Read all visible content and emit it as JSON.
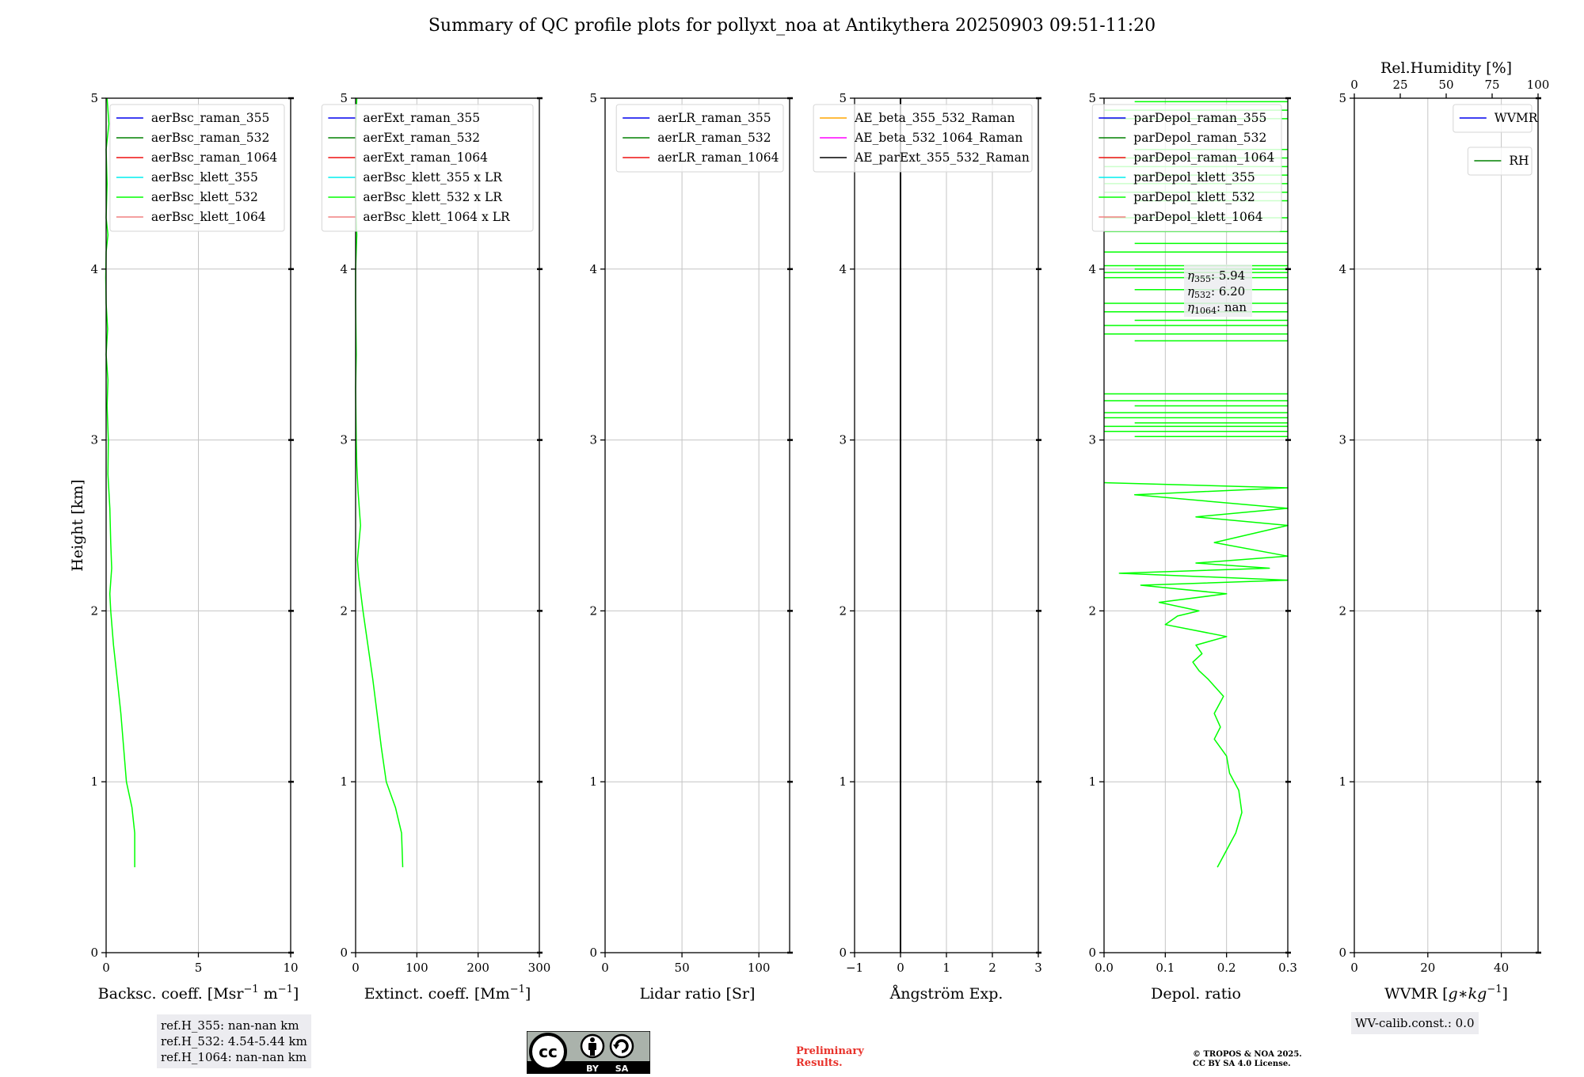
{
  "figure_title": "Summary of QC profile plots for pollyxt_noa at Antikythera 20250903 09:51-11:20",
  "ref_heights": [
    "ref.H_355: nan-nan km",
    "ref.H_532: 4.54-5.44 km",
    "ref.H_1064: nan-nan km"
  ],
  "wv_calib": "WV-calib.const.: 0.0",
  "preliminary": [
    "Preliminary",
    "Results."
  ],
  "copyright": [
    "© TROPOS & NOA 2025.",
    "CC BY SA 4.0 License."
  ],
  "license_badge": {
    "cc": "cc",
    "by": "BY",
    "sa": "SA"
  },
  "colors": {
    "blue": "#0000ee",
    "green": "#008000",
    "red": "#ee1111",
    "cyan": "#00eeee",
    "lime": "#00ff00",
    "pink": "#f08080",
    "orange": "#ffa500",
    "magenta": "#ff00ff",
    "black": "#000000"
  },
  "chart_data": [
    {
      "type": "line",
      "xlabel": "Backsc. coeff. [Msr$^{-1}$ m$^{-1}$]",
      "xlabel_parts": [
        "Backsc. coeff. [Msr",
        "−1",
        " m",
        "−1",
        "]"
      ],
      "ylabel": "Height [km]",
      "xlim": [
        0,
        10
      ],
      "ylim": [
        0,
        5
      ],
      "xticks": [
        0,
        5,
        10
      ],
      "xtick_labels": [
        "0",
        "5",
        "10"
      ],
      "yticks": [
        0,
        1,
        2,
        3,
        4,
        5
      ],
      "ytick_labels": [
        "0",
        "1",
        "2",
        "3",
        "4",
        "5"
      ],
      "legend": {
        "location": "top-right",
        "entries": [
          {
            "label": "aerBsc_raman_355",
            "color": "blue"
          },
          {
            "label": "aerBsc_raman_532",
            "color": "green"
          },
          {
            "label": "aerBsc_raman_1064",
            "color": "red"
          },
          {
            "label": "aerBsc_klett_355",
            "color": "cyan"
          },
          {
            "label": "aerBsc_klett_532",
            "color": "lime"
          },
          {
            "label": "aerBsc_klett_1064",
            "color": "pink"
          }
        ]
      },
      "series": [
        {
          "name": "aerBsc_klett_532",
          "color": "lime",
          "points": [
            [
              1.55,
              0.5
            ],
            [
              1.55,
              0.7
            ],
            [
              1.4,
              0.85
            ],
            [
              1.1,
              1.0
            ],
            [
              0.95,
              1.2
            ],
            [
              0.8,
              1.4
            ],
            [
              0.6,
              1.6
            ],
            [
              0.4,
              1.8
            ],
            [
              0.25,
              2.0
            ],
            [
              0.2,
              2.1
            ],
            [
              0.3,
              2.25
            ],
            [
              0.25,
              2.4
            ],
            [
              0.2,
              2.6
            ],
            [
              0.1,
              2.8
            ],
            [
              0.12,
              3.0
            ],
            [
              0.05,
              3.2
            ],
            [
              0.1,
              3.35
            ],
            [
              0.0,
              3.5
            ],
            [
              0.08,
              3.65
            ],
            [
              0.0,
              3.8
            ],
            [
              -0.02,
              3.95
            ],
            [
              0.0,
              4.1
            ],
            [
              0.1,
              4.2
            ],
            [
              0.0,
              4.3
            ],
            [
              0.05,
              4.5
            ],
            [
              0.0,
              4.7
            ],
            [
              0.15,
              4.85
            ],
            [
              0.05,
              5.0
            ]
          ]
        }
      ]
    },
    {
      "type": "line",
      "xlabel": "Extinct. coeff. [Mm$^{-1}$]",
      "xlabel_parts": [
        "Extinct. coeff. [Mm",
        "−1",
        "]"
      ],
      "xlim": [
        0,
        300
      ],
      "ylim": [
        0,
        5
      ],
      "xticks": [
        0,
        100,
        200,
        300
      ],
      "xtick_labels": [
        "0",
        "100",
        "200",
        "300"
      ],
      "yticks": [
        0,
        1,
        2,
        3,
        4,
        5
      ],
      "ytick_labels": [
        "0",
        "1",
        "2",
        "3",
        "4",
        "5"
      ],
      "legend": {
        "location": "top-right",
        "entries": [
          {
            "label": "aerExt_raman_355",
            "color": "blue"
          },
          {
            "label": "aerExt_raman_532",
            "color": "green"
          },
          {
            "label": "aerExt_raman_1064",
            "color": "red"
          },
          {
            "label": "aerBsc_klett_355 x LR",
            "color": "cyan"
          },
          {
            "label": "aerBsc_klett_532 x LR",
            "color": "lime"
          },
          {
            "label": "aerBsc_klett_1064 x LR",
            "color": "pink"
          }
        ]
      },
      "series": [
        {
          "name": "aerBsc_klett_532 x LR",
          "color": "lime",
          "points": [
            [
              77,
              0.5
            ],
            [
              75,
              0.7
            ],
            [
              65,
              0.85
            ],
            [
              50,
              1.0
            ],
            [
              42,
              1.2
            ],
            [
              35,
              1.4
            ],
            [
              28,
              1.6
            ],
            [
              20,
              1.8
            ],
            [
              12,
              2.0
            ],
            [
              5,
              2.2
            ],
            [
              3,
              2.3
            ],
            [
              8,
              2.5
            ],
            [
              4,
              2.7
            ],
            [
              2,
              2.85
            ],
            [
              1,
              3.0
            ],
            [
              0,
              3.3
            ],
            [
              1,
              3.5
            ],
            [
              0,
              3.8
            ],
            [
              0,
              4.0
            ],
            [
              2,
              4.2
            ],
            [
              0,
              4.4
            ],
            [
              0,
              4.8
            ],
            [
              2,
              5.0
            ]
          ]
        }
      ]
    },
    {
      "type": "line",
      "xlabel": "Lidar ratio [Sr]",
      "xlim": [
        0,
        120
      ],
      "ylim": [
        0,
        5
      ],
      "xticks": [
        0,
        50,
        100
      ],
      "xtick_labels": [
        "0",
        "50",
        "100"
      ],
      "yticks": [
        0,
        1,
        2,
        3,
        4,
        5
      ],
      "ytick_labels": [
        "0",
        "1",
        "2",
        "3",
        "4",
        "5"
      ],
      "legend": {
        "location": "top-right",
        "entries": [
          {
            "label": "aerLR_raman_355",
            "color": "blue"
          },
          {
            "label": "aerLR_raman_532",
            "color": "green"
          },
          {
            "label": "aerLR_raman_1064",
            "color": "red"
          }
        ]
      },
      "series": []
    },
    {
      "type": "line",
      "xlabel": "Ångström Exp.",
      "xlim": [
        -1,
        3
      ],
      "ylim": [
        0,
        5
      ],
      "xticks": [
        -1,
        0,
        1,
        2,
        3
      ],
      "xtick_labels": [
        "−1",
        "0",
        "1",
        "2",
        "3"
      ],
      "yticks": [
        0,
        1,
        2,
        3,
        4,
        5
      ],
      "ytick_labels": [
        "0",
        "1",
        "2",
        "3",
        "4",
        "5"
      ],
      "vline": 0,
      "legend": {
        "location": "top-right",
        "entries": [
          {
            "label": "AE_beta_355_532_Raman",
            "color": "orange"
          },
          {
            "label": "AE_beta_532_1064_Raman",
            "color": "magenta"
          },
          {
            "label": "AE_parExt_355_532_Raman",
            "color": "black"
          }
        ]
      },
      "series": []
    },
    {
      "type": "line",
      "xlabel": "Depol. ratio",
      "xlim": [
        0,
        0.3
      ],
      "ylim": [
        0,
        5
      ],
      "xticks": [
        0,
        0.1,
        0.2,
        0.3
      ],
      "xtick_labels": [
        "0.0",
        "0.1",
        "0.2",
        "0.3"
      ],
      "yticks": [
        0,
        1,
        2,
        3,
        4,
        5
      ],
      "ytick_labels": [
        "0",
        "1",
        "2",
        "3",
        "4",
        "5"
      ],
      "legend": {
        "location": "top-right",
        "entries": [
          {
            "label": "parDepol_raman_355",
            "color": "blue"
          },
          {
            "label": "parDepol_raman_532",
            "color": "green"
          },
          {
            "label": "parDepol_raman_1064",
            "color": "red"
          },
          {
            "label": "parDepol_klett_355",
            "color": "cyan"
          },
          {
            "label": "parDepol_klett_532",
            "color": "lime"
          },
          {
            "label": "parDepol_klett_1064",
            "color": "pink"
          }
        ]
      },
      "annotation": [
        "η355: 5.94",
        "η532: 6.20",
        "η1064: nan"
      ],
      "series": [
        {
          "name": "parDepol_klett_532",
          "color": "lime",
          "points": [
            [
              0.185,
              0.5
            ],
            [
              0.2,
              0.6
            ],
            [
              0.215,
              0.7
            ],
            [
              0.225,
              0.82
            ],
            [
              0.22,
              0.95
            ],
            [
              0.205,
              1.05
            ],
            [
              0.2,
              1.15
            ],
            [
              0.18,
              1.25
            ],
            [
              0.19,
              1.32
            ],
            [
              0.18,
              1.4
            ],
            [
              0.195,
              1.5
            ],
            [
              0.17,
              1.6
            ],
            [
              0.155,
              1.65
            ],
            [
              0.145,
              1.7
            ],
            [
              0.16,
              1.75
            ],
            [
              0.15,
              1.8
            ],
            [
              0.2,
              1.85
            ],
            [
              0.1,
              1.92
            ],
            [
              0.12,
              1.97
            ],
            [
              0.155,
              2.0
            ],
            [
              0.09,
              2.05
            ],
            [
              0.2,
              2.1
            ],
            [
              0.06,
              2.15
            ],
            [
              0.3,
              2.18
            ],
            [
              0.025,
              2.22
            ],
            [
              0.27,
              2.25
            ],
            [
              0.15,
              2.28
            ],
            [
              0.3,
              2.32
            ],
            [
              0.18,
              2.4
            ],
            [
              0.3,
              2.5
            ],
            [
              0.15,
              2.55
            ],
            [
              0.3,
              2.6
            ],
            [
              0.05,
              2.68
            ],
            [
              0.3,
              2.72
            ],
            [
              0.0,
              2.75
            ]
          ]
        }
      ],
      "hlines_y": [
        3.02,
        3.05,
        3.08,
        3.1,
        3.13,
        3.16,
        3.2,
        3.23,
        3.27,
        3.58,
        3.62,
        3.67,
        3.7,
        3.75,
        3.8,
        3.88,
        3.95,
        3.98,
        4.0,
        4.02,
        4.1,
        4.15,
        4.22,
        4.3,
        4.4,
        4.45,
        4.5,
        4.55,
        4.6,
        4.65,
        4.7,
        4.88,
        4.93,
        4.98
      ]
    },
    {
      "type": "line",
      "xlabel": "WVMR [$g*kg^{-1}$]",
      "xlabel_parts": [
        "WVMR [",
        "g",
        "∗",
        "kg",
        "−1",
        "]"
      ],
      "top_xlabel": "Rel.Humidity [%]",
      "xlim": [
        0,
        50
      ],
      "ylim": [
        0,
        5
      ],
      "xticks": [
        0,
        20,
        40
      ],
      "xtick_labels": [
        "0",
        "20",
        "40"
      ],
      "top_xlim": [
        0,
        100
      ],
      "top_xticks": [
        0,
        25,
        50,
        75,
        100
      ],
      "top_xtick_labels": [
        "0",
        "25",
        "50",
        "75",
        "100"
      ],
      "yticks": [
        0,
        1,
        2,
        3,
        4,
        5
      ],
      "ytick_labels": [
        "0",
        "1",
        "2",
        "3",
        "4",
        "5"
      ],
      "legend": {
        "location": "top-right",
        "entries": [
          {
            "label": "WVMR",
            "color": "blue"
          }
        ]
      },
      "legend2": {
        "location": "upper-right",
        "entries": [
          {
            "label": "RH",
            "color": "green"
          }
        ]
      },
      "series": []
    }
  ]
}
